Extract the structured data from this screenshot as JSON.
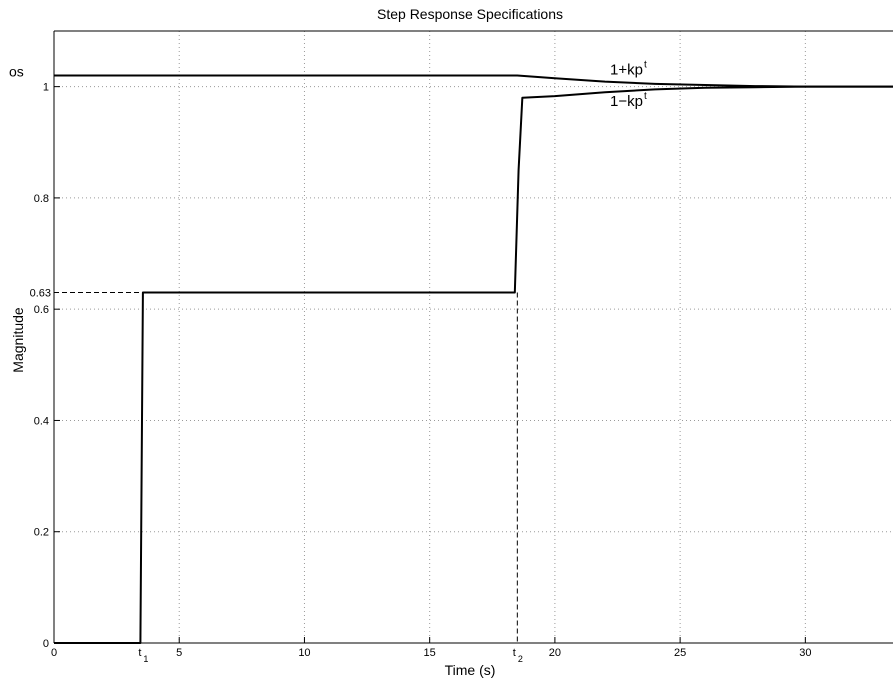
{
  "chart_data": {
    "type": "line",
    "title": "Step Response Specifications",
    "xlabel": "Time (s)",
    "ylabel": "Magnitude",
    "xlim": [
      0,
      33.5
    ],
    "ylim": [
      0,
      1.1
    ],
    "x_ticks": [
      0,
      5,
      10,
      15,
      20,
      25,
      30
    ],
    "y_ticks": [
      0,
      0.2,
      0.4,
      0.6,
      0.8,
      1
    ],
    "x_tick_labels": [
      "0",
      "5",
      "10",
      "15",
      "20",
      "25",
      "30"
    ],
    "y_tick_labels": [
      "0",
      "0.2",
      "0.4",
      "0.6",
      "0.8",
      "1"
    ],
    "grid": true,
    "special_ticks": {
      "t1": {
        "value": 3.55,
        "base": "t",
        "sub": "1"
      },
      "t2": {
        "value": 18.5,
        "base": "t",
        "sub": "2"
      },
      "level": {
        "value": 0.63,
        "label": "0.63"
      },
      "os": {
        "value": 1.02,
        "label": "os"
      }
    },
    "series": [
      {
        "x": [
          0,
          3.45,
          3.55,
          18.4,
          18.55,
          18.7,
          20,
          22,
          24,
          26,
          28,
          30,
          33.5
        ],
        "y": [
          0,
          0,
          0.63,
          0.63,
          0.85,
          0.98,
          0.983,
          0.99,
          0.995,
          0.998,
          0.999,
          1.0,
          1.0
        ]
      },
      {
        "x": [
          0,
          18.5,
          20,
          22,
          24,
          26,
          28,
          30,
          33.5
        ],
        "y": [
          1.02,
          1.02,
          1.015,
          1.009,
          1.005,
          1.003,
          1.001,
          1.0,
          1.0
        ]
      }
    ],
    "annotations": [
      {
        "base": "1+kp",
        "sup": "t",
        "x": 22.2,
        "y": 1.022
      },
      {
        "base": "1−kp",
        "sup": "t",
        "x": 22.2,
        "y": 0.965
      }
    ],
    "colors": {
      "line": "#000000",
      "grid": "#9a9a9a",
      "axis": "#000000"
    }
  }
}
